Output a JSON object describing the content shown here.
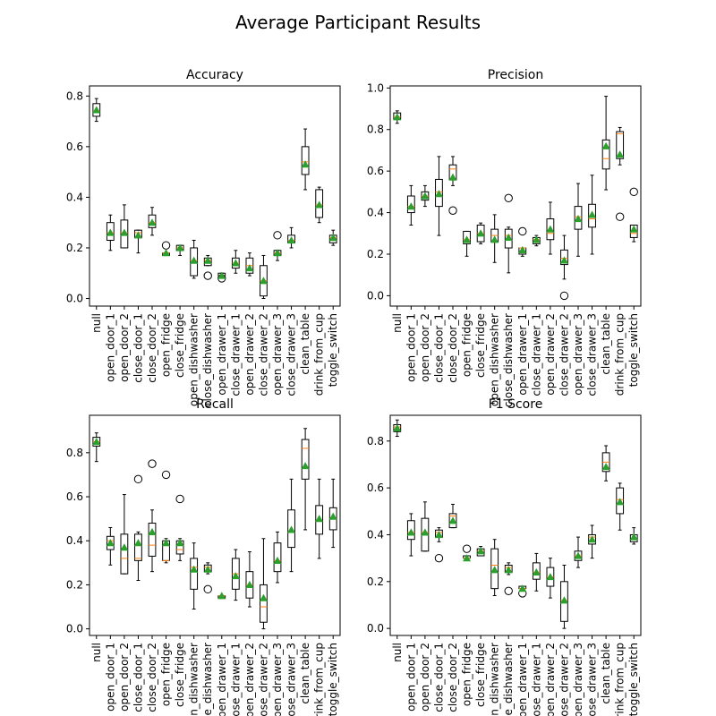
{
  "figure": {
    "title": "Average Participant Results"
  },
  "chart_data": [
    {
      "type": "box",
      "title": "Accuracy",
      "categories": [
        "null",
        "open_door_1",
        "open_door_2",
        "close_door_1",
        "close_door_2",
        "open_fridge",
        "close_fridge",
        "open_dishwasher",
        "close_dishwasher",
        "open_drawer_1",
        "close_drawer_1",
        "open_drawer_2",
        "close_drawer_2",
        "open_drawer_3",
        "close_drawer_3",
        "clean_table",
        "drink_from_cup",
        "toggle_switch"
      ],
      "ylim": [
        -0.03,
        0.84
      ],
      "yticks": [
        0.0,
        0.2,
        0.4,
        0.6,
        0.8
      ],
      "ytick_labels": [
        "0.0",
        "0.2",
        "0.4",
        "0.6",
        "0.8"
      ],
      "boxes": [
        {
          "whislo": 0.7,
          "q1": 0.72,
          "med": 0.74,
          "q3": 0.77,
          "whishi": 0.79,
          "mean": 0.745,
          "fliers": []
        },
        {
          "whislo": 0.19,
          "q1": 0.23,
          "med": 0.26,
          "q3": 0.3,
          "whishi": 0.33,
          "mean": 0.26,
          "fliers": []
        },
        {
          "whislo": 0.2,
          "q1": 0.2,
          "med": 0.26,
          "q3": 0.31,
          "whishi": 0.37,
          "mean": 0.26,
          "fliers": []
        },
        {
          "whislo": 0.18,
          "q1": 0.24,
          "med": 0.26,
          "q3": 0.27,
          "whishi": 0.27,
          "mean": 0.25,
          "fliers": []
        },
        {
          "whislo": 0.25,
          "q1": 0.28,
          "med": 0.3,
          "q3": 0.33,
          "whishi": 0.36,
          "mean": 0.3,
          "fliers": []
        },
        {
          "whislo": 0.17,
          "q1": 0.17,
          "med": 0.18,
          "q3": 0.18,
          "whishi": 0.18,
          "mean": 0.18,
          "fliers": [
            0.21
          ]
        },
        {
          "whislo": 0.17,
          "q1": 0.19,
          "med": 0.2,
          "q3": 0.21,
          "whishi": 0.21,
          "mean": 0.2,
          "fliers": []
        },
        {
          "whislo": 0.08,
          "q1": 0.09,
          "med": 0.15,
          "q3": 0.2,
          "whishi": 0.23,
          "mean": 0.15,
          "fliers": []
        },
        {
          "whislo": 0.13,
          "q1": 0.13,
          "med": 0.15,
          "q3": 0.16,
          "whishi": 0.17,
          "mean": 0.15,
          "fliers": [
            0.09
          ]
        },
        {
          "whislo": 0.09,
          "q1": 0.09,
          "med": 0.09,
          "q3": 0.1,
          "whishi": 0.1,
          "mean": 0.09,
          "fliers": [
            0.08
          ]
        },
        {
          "whislo": 0.1,
          "q1": 0.12,
          "med": 0.14,
          "q3": 0.16,
          "whishi": 0.19,
          "mean": 0.14,
          "fliers": []
        },
        {
          "whislo": 0.09,
          "q1": 0.1,
          "med": 0.13,
          "q3": 0.16,
          "whishi": 0.18,
          "mean": 0.12,
          "fliers": []
        },
        {
          "whislo": 0.0,
          "q1": 0.01,
          "med": 0.07,
          "q3": 0.13,
          "whishi": 0.17,
          "mean": 0.07,
          "fliers": []
        },
        {
          "whislo": 0.15,
          "q1": 0.17,
          "med": 0.18,
          "q3": 0.19,
          "whishi": 0.19,
          "mean": 0.18,
          "fliers": [
            0.25
          ]
        },
        {
          "whislo": 0.2,
          "q1": 0.22,
          "med": 0.23,
          "q3": 0.25,
          "whishi": 0.28,
          "mean": 0.23,
          "fliers": []
        },
        {
          "whislo": 0.43,
          "q1": 0.49,
          "med": 0.54,
          "q3": 0.6,
          "whishi": 0.67,
          "mean": 0.53,
          "fliers": []
        },
        {
          "whislo": 0.3,
          "q1": 0.32,
          "med": 0.37,
          "q3": 0.43,
          "whishi": 0.44,
          "mean": 0.37,
          "fliers": []
        },
        {
          "whislo": 0.21,
          "q1": 0.22,
          "med": 0.24,
          "q3": 0.25,
          "whishi": 0.27,
          "mean": 0.24,
          "fliers": []
        }
      ]
    },
    {
      "type": "box",
      "title": "Precision",
      "categories": [
        "null",
        "open_door_1",
        "open_door_2",
        "close_door_1",
        "close_door_2",
        "open_fridge",
        "close_fridge",
        "open_dishwasher",
        "close_dishwasher",
        "open_drawer_1",
        "close_drawer_1",
        "open_drawer_2",
        "close_drawer_2",
        "open_drawer_3",
        "close_drawer_3",
        "clean_table",
        "drink_from_cup",
        "toggle_switch"
      ],
      "ylim": [
        -0.05,
        1.01
      ],
      "yticks": [
        0.0,
        0.2,
        0.4,
        0.6,
        0.8,
        1.0
      ],
      "ytick_labels": [
        "0.0",
        "0.2",
        "0.4",
        "0.6",
        "0.8",
        "1.0"
      ],
      "boxes": [
        {
          "whislo": 0.83,
          "q1": 0.85,
          "med": 0.86,
          "q3": 0.88,
          "whishi": 0.89,
          "mean": 0.86,
          "fliers": []
        },
        {
          "whislo": 0.34,
          "q1": 0.4,
          "med": 0.43,
          "q3": 0.48,
          "whishi": 0.53,
          "mean": 0.43,
          "fliers": []
        },
        {
          "whislo": 0.43,
          "q1": 0.46,
          "med": 0.48,
          "q3": 0.5,
          "whishi": 0.53,
          "mean": 0.48,
          "fliers": []
        },
        {
          "whislo": 0.29,
          "q1": 0.43,
          "med": 0.5,
          "q3": 0.56,
          "whishi": 0.67,
          "mean": 0.49,
          "fliers": []
        },
        {
          "whislo": 0.53,
          "q1": 0.56,
          "med": 0.61,
          "q3": 0.63,
          "whishi": 0.67,
          "mean": 0.57,
          "fliers": [
            0.41
          ]
        },
        {
          "whislo": 0.19,
          "q1": 0.25,
          "med": 0.27,
          "q3": 0.31,
          "whishi": 0.31,
          "mean": 0.27,
          "fliers": []
        },
        {
          "whislo": 0.25,
          "q1": 0.26,
          "med": 0.3,
          "q3": 0.34,
          "whishi": 0.35,
          "mean": 0.3,
          "fliers": []
        },
        {
          "whislo": 0.16,
          "q1": 0.26,
          "med": 0.29,
          "q3": 0.32,
          "whishi": 0.39,
          "mean": 0.27,
          "fliers": []
        },
        {
          "whislo": 0.11,
          "q1": 0.23,
          "med": 0.29,
          "q3": 0.32,
          "whishi": 0.33,
          "mean": 0.28,
          "fliers": [
            0.47
          ]
        },
        {
          "whislo": 0.19,
          "q1": 0.2,
          "med": 0.23,
          "q3": 0.23,
          "whishi": 0.23,
          "mean": 0.22,
          "fliers": [
            0.31
          ]
        },
        {
          "whislo": 0.24,
          "q1": 0.25,
          "med": 0.27,
          "q3": 0.28,
          "whishi": 0.29,
          "mean": 0.27,
          "fliers": []
        },
        {
          "whislo": 0.2,
          "q1": 0.27,
          "med": 0.3,
          "q3": 0.37,
          "whishi": 0.45,
          "mean": 0.32,
          "fliers": []
        },
        {
          "whislo": 0.08,
          "q1": 0.15,
          "med": 0.18,
          "q3": 0.22,
          "whishi": 0.29,
          "mean": 0.17,
          "fliers": [
            0.0
          ]
        },
        {
          "whislo": 0.19,
          "q1": 0.32,
          "med": 0.38,
          "q3": 0.43,
          "whishi": 0.54,
          "mean": 0.37,
          "fliers": []
        },
        {
          "whislo": 0.2,
          "q1": 0.33,
          "med": 0.37,
          "q3": 0.44,
          "whishi": 0.58,
          "mean": 0.39,
          "fliers": []
        },
        {
          "whislo": 0.51,
          "q1": 0.61,
          "med": 0.66,
          "q3": 0.75,
          "whishi": 0.96,
          "mean": 0.72,
          "fliers": []
        },
        {
          "whislo": 0.63,
          "q1": 0.66,
          "med": 0.78,
          "q3": 0.79,
          "whishi": 0.81,
          "mean": 0.68,
          "fliers": [
            0.38
          ]
        },
        {
          "whislo": 0.26,
          "q1": 0.28,
          "med": 0.3,
          "q3": 0.34,
          "whishi": 0.34,
          "mean": 0.32,
          "fliers": [
            0.5
          ]
        }
      ]
    },
    {
      "type": "box",
      "title": "Recall",
      "categories": [
        "null",
        "open_door_1",
        "open_door_2",
        "close_door_1",
        "close_door_2",
        "open_fridge",
        "close_fridge",
        "open_dishwasher",
        "close_dishwasher",
        "open_drawer_1",
        "close_drawer_1",
        "open_drawer_2",
        "close_drawer_2",
        "open_drawer_3",
        "close_drawer_3",
        "clean_table",
        "drink_from_cup",
        "toggle_switch"
      ],
      "ylim": [
        -0.03,
        0.97
      ],
      "yticks": [
        0.0,
        0.2,
        0.4,
        0.6,
        0.8
      ],
      "ytick_labels": [
        "0.0",
        "0.2",
        "0.4",
        "0.6",
        "0.8"
      ],
      "boxes": [
        {
          "whislo": 0.76,
          "q1": 0.83,
          "med": 0.85,
          "q3": 0.87,
          "whishi": 0.89,
          "mean": 0.85,
          "fliers": []
        },
        {
          "whislo": 0.29,
          "q1": 0.36,
          "med": 0.4,
          "q3": 0.42,
          "whishi": 0.46,
          "mean": 0.39,
          "fliers": []
        },
        {
          "whislo": 0.25,
          "q1": 0.25,
          "med": 0.32,
          "q3": 0.43,
          "whishi": 0.61,
          "mean": 0.37,
          "fliers": []
        },
        {
          "whislo": 0.22,
          "q1": 0.31,
          "med": 0.32,
          "q3": 0.43,
          "whishi": 0.44,
          "mean": 0.39,
          "fliers": [
            0.68
          ]
        },
        {
          "whislo": 0.26,
          "q1": 0.33,
          "med": 0.38,
          "q3": 0.48,
          "whishi": 0.54,
          "mean": 0.44,
          "fliers": [
            0.75
          ]
        },
        {
          "whislo": 0.3,
          "q1": 0.31,
          "med": 0.31,
          "q3": 0.4,
          "whishi": 0.41,
          "mean": 0.39,
          "fliers": [
            0.7
          ]
        },
        {
          "whislo": 0.31,
          "q1": 0.34,
          "med": 0.36,
          "q3": 0.4,
          "whishi": 0.41,
          "mean": 0.39,
          "fliers": [
            0.59
          ]
        },
        {
          "whislo": 0.09,
          "q1": 0.18,
          "med": 0.28,
          "q3": 0.32,
          "whishi": 0.39,
          "mean": 0.27,
          "fliers": []
        },
        {
          "whislo": 0.25,
          "q1": 0.26,
          "med": 0.28,
          "q3": 0.29,
          "whishi": 0.3,
          "mean": 0.27,
          "fliers": [
            0.18
          ]
        },
        {
          "whislo": 0.14,
          "q1": 0.14,
          "med": 0.15,
          "q3": 0.15,
          "whishi": 0.15,
          "mean": 0.15,
          "fliers": []
        },
        {
          "whislo": 0.13,
          "q1": 0.18,
          "med": 0.25,
          "q3": 0.32,
          "whishi": 0.36,
          "mean": 0.24,
          "fliers": []
        },
        {
          "whislo": 0.1,
          "q1": 0.14,
          "med": 0.2,
          "q3": 0.26,
          "whishi": 0.35,
          "mean": 0.2,
          "fliers": []
        },
        {
          "whislo": 0.0,
          "q1": 0.03,
          "med": 0.1,
          "q3": 0.2,
          "whishi": 0.41,
          "mean": 0.14,
          "fliers": []
        },
        {
          "whislo": 0.21,
          "q1": 0.26,
          "med": 0.31,
          "q3": 0.39,
          "whishi": 0.44,
          "mean": 0.31,
          "fliers": []
        },
        {
          "whislo": 0.26,
          "q1": 0.37,
          "med": 0.44,
          "q3": 0.54,
          "whishi": 0.68,
          "mean": 0.45,
          "fliers": []
        },
        {
          "whislo": 0.45,
          "q1": 0.68,
          "med": 0.82,
          "q3": 0.86,
          "whishi": 0.91,
          "mean": 0.74,
          "fliers": []
        },
        {
          "whislo": 0.32,
          "q1": 0.43,
          "med": 0.49,
          "q3": 0.56,
          "whishi": 0.68,
          "mean": 0.5,
          "fliers": []
        },
        {
          "whislo": 0.37,
          "q1": 0.45,
          "med": 0.5,
          "q3": 0.55,
          "whishi": 0.68,
          "mean": 0.51,
          "fliers": []
        }
      ]
    },
    {
      "type": "box",
      "title": "F1 Score",
      "categories": [
        "null",
        "open_door_1",
        "open_door_2",
        "close_door_1",
        "close_door_2",
        "open_fridge",
        "close_fridge",
        "open_dishwasher",
        "close_dishwasher",
        "open_drawer_1",
        "close_drawer_1",
        "open_drawer_2",
        "close_drawer_2",
        "open_drawer_3",
        "close_drawer_3",
        "clean_table",
        "drink_from_cup",
        "toggle_switch"
      ],
      "ylim": [
        -0.03,
        0.91
      ],
      "yticks": [
        0.0,
        0.2,
        0.4,
        0.6,
        0.8
      ],
      "ytick_labels": [
        "0.0",
        "0.2",
        "0.4",
        "0.6",
        "0.8"
      ],
      "boxes": [
        {
          "whislo": 0.82,
          "q1": 0.84,
          "med": 0.86,
          "q3": 0.87,
          "whishi": 0.89,
          "mean": 0.855,
          "fliers": []
        },
        {
          "whislo": 0.31,
          "q1": 0.38,
          "med": 0.41,
          "q3": 0.46,
          "whishi": 0.49,
          "mean": 0.41,
          "fliers": []
        },
        {
          "whislo": 0.33,
          "q1": 0.33,
          "med": 0.41,
          "q3": 0.47,
          "whishi": 0.54,
          "mean": 0.41,
          "fliers": []
        },
        {
          "whislo": 0.37,
          "q1": 0.39,
          "med": 0.41,
          "q3": 0.42,
          "whishi": 0.43,
          "mean": 0.4,
          "fliers": [
            0.3
          ]
        },
        {
          "whislo": 0.43,
          "q1": 0.43,
          "med": 0.48,
          "q3": 0.49,
          "whishi": 0.53,
          "mean": 0.46,
          "fliers": []
        },
        {
          "whislo": 0.29,
          "q1": 0.3,
          "med": 0.3,
          "q3": 0.31,
          "whishi": 0.31,
          "mean": 0.3,
          "fliers": [
            0.34
          ]
        },
        {
          "whislo": 0.31,
          "q1": 0.31,
          "med": 0.33,
          "q3": 0.34,
          "whishi": 0.35,
          "mean": 0.33,
          "fliers": []
        },
        {
          "whislo": 0.14,
          "q1": 0.17,
          "med": 0.27,
          "q3": 0.34,
          "whishi": 0.38,
          "mean": 0.25,
          "fliers": []
        },
        {
          "whislo": 0.23,
          "q1": 0.24,
          "med": 0.26,
          "q3": 0.27,
          "whishi": 0.28,
          "mean": 0.25,
          "fliers": [
            0.16
          ]
        },
        {
          "whislo": 0.16,
          "q1": 0.17,
          "med": 0.17,
          "q3": 0.18,
          "whishi": 0.18,
          "mean": 0.17,
          "fliers": [
            0.15
          ]
        },
        {
          "whislo": 0.16,
          "q1": 0.21,
          "med": 0.24,
          "q3": 0.28,
          "whishi": 0.32,
          "mean": 0.24,
          "fliers": []
        },
        {
          "whislo": 0.13,
          "q1": 0.18,
          "med": 0.22,
          "q3": 0.26,
          "whishi": 0.3,
          "mean": 0.22,
          "fliers": []
        },
        {
          "whislo": 0.0,
          "q1": 0.03,
          "med": 0.12,
          "q3": 0.2,
          "whishi": 0.27,
          "mean": 0.12,
          "fliers": []
        },
        {
          "whislo": 0.26,
          "q1": 0.29,
          "med": 0.31,
          "q3": 0.33,
          "whishi": 0.39,
          "mean": 0.31,
          "fliers": []
        },
        {
          "whislo": 0.3,
          "q1": 0.36,
          "med": 0.39,
          "q3": 0.4,
          "whishi": 0.44,
          "mean": 0.38,
          "fliers": []
        },
        {
          "whislo": 0.63,
          "q1": 0.67,
          "med": 0.71,
          "q3": 0.75,
          "whishi": 0.78,
          "mean": 0.69,
          "fliers": []
        },
        {
          "whislo": 0.42,
          "q1": 0.49,
          "med": 0.55,
          "q3": 0.6,
          "whishi": 0.62,
          "mean": 0.54,
          "fliers": []
        },
        {
          "whislo": 0.36,
          "q1": 0.37,
          "med": 0.38,
          "q3": 0.4,
          "whishi": 0.43,
          "mean": 0.39,
          "fliers": []
        }
      ]
    }
  ],
  "colors": {
    "box": "#000000",
    "median": "#ff7f0e",
    "mean": "#2ca02c",
    "flier": "#000000",
    "background": "#ffffff"
  }
}
